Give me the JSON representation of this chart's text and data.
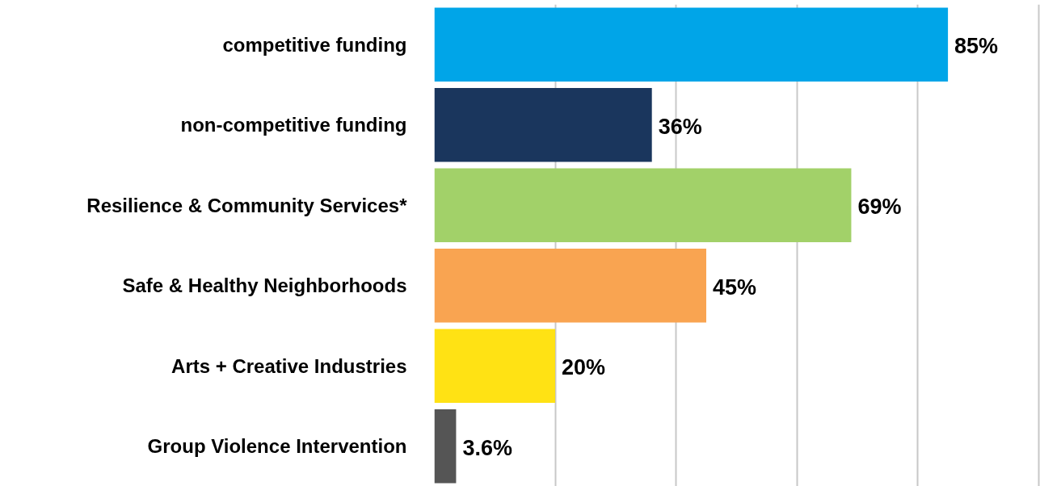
{
  "chart_data": {
    "type": "bar",
    "orientation": "horizontal",
    "categories": [
      "competitive funding",
      "non-competitive funding",
      "Resilience & Community Services*",
      "Safe & Healthy Neighborhoods",
      "Arts + Creative Industries",
      "Group Violence Intervention"
    ],
    "values": [
      85,
      36,
      69,
      45,
      20,
      3.6
    ],
    "value_labels": [
      "85%",
      "36%",
      "69%",
      "45%",
      "20%",
      "3.6%"
    ],
    "colors": [
      "#00a5e8",
      "#1a365d",
      "#a2d169",
      "#f9a451",
      "#ffe214",
      "#555555"
    ],
    "grid": "x",
    "tick_labels": "y"
  }
}
